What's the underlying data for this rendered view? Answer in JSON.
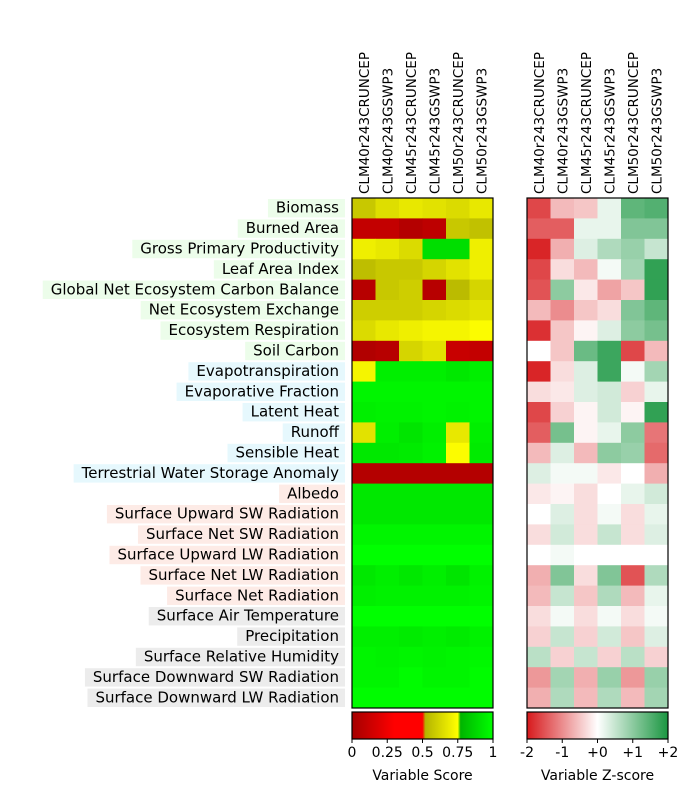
{
  "chart_data": {
    "type": "heatmap",
    "columns": [
      "CLM40r243CRUNCEP",
      "CLM40r243GSWP3",
      "CLM45r243CRUNCEP",
      "CLM45r243GSWP3",
      "CLM50r243CRUNCEP",
      "CLM50r243GSWP3"
    ],
    "rows": [
      {
        "label": "Biomass",
        "group": "ecosystem"
      },
      {
        "label": "Burned Area",
        "group": "ecosystem"
      },
      {
        "label": "Gross Primary Productivity",
        "group": "ecosystem"
      },
      {
        "label": "Leaf Area Index",
        "group": "ecosystem"
      },
      {
        "label": "Global Net Ecosystem Carbon Balance",
        "group": "ecosystem"
      },
      {
        "label": "Net Ecosystem Exchange",
        "group": "ecosystem"
      },
      {
        "label": "Ecosystem Respiration",
        "group": "ecosystem"
      },
      {
        "label": "Soil Carbon",
        "group": "ecosystem"
      },
      {
        "label": "Evapotranspiration",
        "group": "hydrology"
      },
      {
        "label": "Evaporative Fraction",
        "group": "hydrology"
      },
      {
        "label": "Latent Heat",
        "group": "hydrology"
      },
      {
        "label": "Runoff",
        "group": "hydrology"
      },
      {
        "label": "Sensible Heat",
        "group": "hydrology"
      },
      {
        "label": "Terrestrial Water Storage Anomaly",
        "group": "hydrology"
      },
      {
        "label": "Albedo",
        "group": "radiation"
      },
      {
        "label": "Surface Upward SW Radiation",
        "group": "radiation"
      },
      {
        "label": "Surface Net SW Radiation",
        "group": "radiation"
      },
      {
        "label": "Surface Upward LW Radiation",
        "group": "radiation"
      },
      {
        "label": "Surface Net LW Radiation",
        "group": "radiation"
      },
      {
        "label": "Surface Net Radiation",
        "group": "radiation"
      },
      {
        "label": "Surface Air Temperature",
        "group": "forcing"
      },
      {
        "label": "Precipitation",
        "group": "forcing"
      },
      {
        "label": "Surface Relative Humidity",
        "group": "forcing"
      },
      {
        "label": "Surface Downward SW Radiation",
        "group": "forcing"
      },
      {
        "label": "Surface Downward LW Radiation",
        "group": "forcing"
      }
    ],
    "scores": [
      [
        0.58,
        0.65,
        0.68,
        0.66,
        0.64,
        0.68
      ],
      [
        0.1,
        0.1,
        0.05,
        0.08,
        0.58,
        0.56
      ],
      [
        0.7,
        0.68,
        0.64,
        0.9,
        0.9,
        0.7
      ],
      [
        0.55,
        0.58,
        0.58,
        0.62,
        0.66,
        0.7
      ],
      [
        0.06,
        0.58,
        0.6,
        0.06,
        0.54,
        0.62
      ],
      [
        0.6,
        0.6,
        0.6,
        0.62,
        0.64,
        0.66
      ],
      [
        0.64,
        0.68,
        0.7,
        0.72,
        0.72,
        0.74
      ],
      [
        0.04,
        0.06,
        0.62,
        0.66,
        0.12,
        0.1
      ],
      [
        0.72,
        0.95,
        0.95,
        0.95,
        0.93,
        0.95
      ],
      [
        0.97,
        0.97,
        0.97,
        0.97,
        0.97,
        0.97
      ],
      [
        0.95,
        0.96,
        0.96,
        0.97,
        0.96,
        0.97
      ],
      [
        0.66,
        0.95,
        0.92,
        0.95,
        0.68,
        0.95
      ],
      [
        0.93,
        0.93,
        0.94,
        0.96,
        0.74,
        0.94
      ],
      [
        0.05,
        0.05,
        0.05,
        0.05,
        0.05,
        0.05
      ],
      [
        0.93,
        0.93,
        0.93,
        0.93,
        0.93,
        0.93
      ],
      [
        0.93,
        0.93,
        0.93,
        0.93,
        0.93,
        0.93
      ],
      [
        0.97,
        0.97,
        0.97,
        0.97,
        0.97,
        0.97
      ],
      [
        1.0,
        1.0,
        1.0,
        1.0,
        1.0,
        1.0
      ],
      [
        0.93,
        0.95,
        0.93,
        0.95,
        0.92,
        0.96
      ],
      [
        0.95,
        0.96,
        0.96,
        0.96,
        0.96,
        0.97
      ],
      [
        1.0,
        1.0,
        1.0,
        1.0,
        1.0,
        1.0
      ],
      [
        0.95,
        0.95,
        0.94,
        0.95,
        0.94,
        0.96
      ],
      [
        0.97,
        0.96,
        0.97,
        0.96,
        0.97,
        0.98
      ],
      [
        0.97,
        0.97,
        0.99,
        0.97,
        0.97,
        0.99
      ],
      [
        0.99,
        0.99,
        0.99,
        0.99,
        0.99,
        0.99
      ]
    ],
    "zscores": [
      [
        -1.6,
        -0.6,
        -0.5,
        0.2,
        1.4,
        1.5
      ],
      [
        -1.4,
        -1.4,
        0.2,
        0.2,
        1.1,
        1.1
      ],
      [
        -1.9,
        -0.7,
        0.3,
        0.7,
        0.9,
        0.5
      ],
      [
        -1.6,
        -0.3,
        -0.6,
        0.1,
        0.8,
        1.8
      ],
      [
        -1.5,
        1.0,
        -0.2,
        -0.8,
        -0.5,
        1.8
      ],
      [
        -0.6,
        -1.0,
        -0.5,
        -0.3,
        1.1,
        1.4
      ],
      [
        -1.8,
        -0.5,
        -0.1,
        0.3,
        1.0,
        1.2
      ],
      [
        0.0,
        -0.5,
        1.3,
        1.7,
        -1.6,
        -0.6
      ],
      [
        -1.9,
        -0.3,
        0.3,
        1.7,
        0.1,
        0.8
      ],
      [
        -0.3,
        -0.2,
        0.3,
        0.4,
        -0.4,
        0.2
      ],
      [
        -1.6,
        -0.4,
        -0.1,
        0.4,
        -0.1,
        1.8
      ],
      [
        -1.4,
        1.2,
        -0.1,
        0.2,
        1.0,
        -1.2
      ],
      [
        -0.6,
        0.3,
        -0.6,
        1.0,
        0.9,
        -1.3
      ],
      [
        0.3,
        0.1,
        0.1,
        -0.2,
        0.0,
        -0.7
      ],
      [
        -0.2,
        -0.1,
        -0.3,
        0.0,
        0.2,
        0.4
      ],
      [
        0.0,
        0.3,
        -0.3,
        0.1,
        -0.3,
        0.2
      ],
      [
        -0.3,
        0.4,
        -0.3,
        0.5,
        -0.3,
        0.3
      ],
      [
        0.0,
        0.1,
        0.0,
        0.0,
        0.0,
        0.0
      ],
      [
        -0.7,
        1.1,
        -0.3,
        1.1,
        -1.5,
        0.7
      ],
      [
        -0.6,
        0.5,
        -0.5,
        0.7,
        -0.6,
        0.2
      ],
      [
        -0.3,
        0.1,
        -0.3,
        0.1,
        -0.3,
        0.1
      ],
      [
        -0.4,
        0.5,
        -0.4,
        0.4,
        -0.5,
        0.3
      ],
      [
        0.6,
        -0.4,
        0.5,
        -0.4,
        0.6,
        -0.4
      ],
      [
        -0.9,
        0.8,
        -0.7,
        0.9,
        -0.9,
        0.9
      ],
      [
        -0.7,
        0.7,
        -0.6,
        0.7,
        -0.6,
        0.8
      ]
    ],
    "group_colors": {
      "ecosystem": "#ecfdea",
      "hydrology": "#e6f8fd",
      "radiation": "#fdebe6",
      "forcing": "#ececec"
    },
    "score_colorbar": {
      "title": "Variable Score",
      "range": [
        0,
        1
      ],
      "ticks": [
        0,
        0.25,
        0.5,
        0.75,
        1
      ],
      "tick_labels": [
        "0",
        "0.25",
        "0.5",
        "0.75",
        "1"
      ],
      "stops": [
        {
          "v": 0,
          "c": "#a50000"
        },
        {
          "v": 0.2,
          "c": "#e00000"
        },
        {
          "v": 0.3,
          "c": "#ff0000"
        },
        {
          "v": 0.5,
          "c": "#ff0000"
        },
        {
          "v": 0.52,
          "c": "#b4b400"
        },
        {
          "v": 0.75,
          "c": "#ffff00"
        },
        {
          "v": 0.77,
          "c": "#00b400"
        },
        {
          "v": 1,
          "c": "#00ff00"
        }
      ]
    },
    "zscore_colorbar": {
      "title": "Variable Z-score",
      "range": [
        -2,
        2
      ],
      "ticks": [
        -2,
        -1,
        0,
        1,
        2
      ],
      "tick_labels": [
        "-2",
        "-1",
        "+0",
        "+1",
        "+2"
      ],
      "stops": [
        {
          "v": -2,
          "c": "#d7191c"
        },
        {
          "v": 0,
          "c": "#ffffff"
        },
        {
          "v": 2,
          "c": "#1a9641"
        }
      ]
    }
  }
}
